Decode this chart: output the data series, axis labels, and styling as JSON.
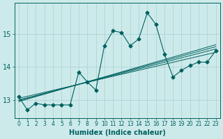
{
  "xlabel": "Humidex (Indice chaleur)",
  "x_values": [
    0,
    1,
    2,
    3,
    4,
    5,
    6,
    7,
    8,
    9,
    10,
    11,
    12,
    13,
    14,
    15,
    16,
    17,
    18,
    19,
    20,
    21,
    22,
    23
  ],
  "main_y": [
    13.1,
    12.7,
    12.9,
    12.85,
    12.85,
    12.85,
    12.85,
    13.85,
    13.55,
    13.3,
    14.65,
    15.1,
    15.05,
    14.65,
    14.85,
    15.65,
    15.3,
    14.4,
    13.7,
    13.9,
    14.05,
    14.15,
    14.15,
    14.5
  ],
  "trend_lines": [
    {
      "x0": 0,
      "y0": 13.05,
      "x1": 23,
      "y1": 14.45
    },
    {
      "x0": 0,
      "y0": 13.0,
      "x1": 23,
      "y1": 14.55
    },
    {
      "x0": 0,
      "y0": 12.98,
      "x1": 23,
      "y1": 14.62
    },
    {
      "x0": 0,
      "y0": 12.95,
      "x1": 23,
      "y1": 14.68
    }
  ],
  "line_color": "#006060",
  "marker": "D",
  "marker_size": 2.5,
  "bg_color": "#cdeaea",
  "grid_color": "#a8d0d0",
  "yticks": [
    13,
    14,
    15
  ],
  "ylim": [
    12.45,
    15.95
  ],
  "xlim": [
    -0.5,
    23.5
  ],
  "xticks": [
    0,
    1,
    2,
    3,
    4,
    5,
    6,
    7,
    8,
    9,
    10,
    11,
    12,
    13,
    14,
    15,
    16,
    17,
    18,
    19,
    20,
    21,
    22,
    23
  ],
  "xlabel_fontsize": 7,
  "tick_fontsize": 5.5,
  "ytick_fontsize": 7
}
